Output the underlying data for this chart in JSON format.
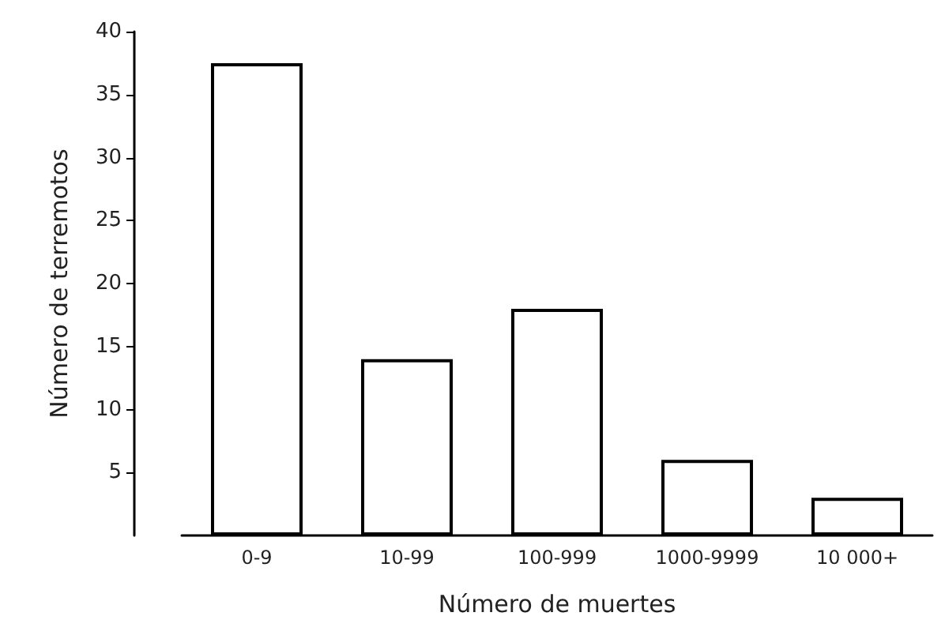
{
  "chart_data": {
    "type": "bar",
    "xlabel": "Número de muertes",
    "ylabel": "Número de terremotos",
    "categories": [
      "0-9",
      "10-99",
      "100-999",
      "1000-9999",
      "10 000+"
    ],
    "values": [
      37.5,
      14,
      18,
      6,
      3
    ],
    "color": "#ffffff",
    "ylim": [
      0,
      40
    ],
    "yticks": [
      5,
      10,
      15,
      20,
      25,
      30,
      35,
      40
    ],
    "grid": false
  }
}
